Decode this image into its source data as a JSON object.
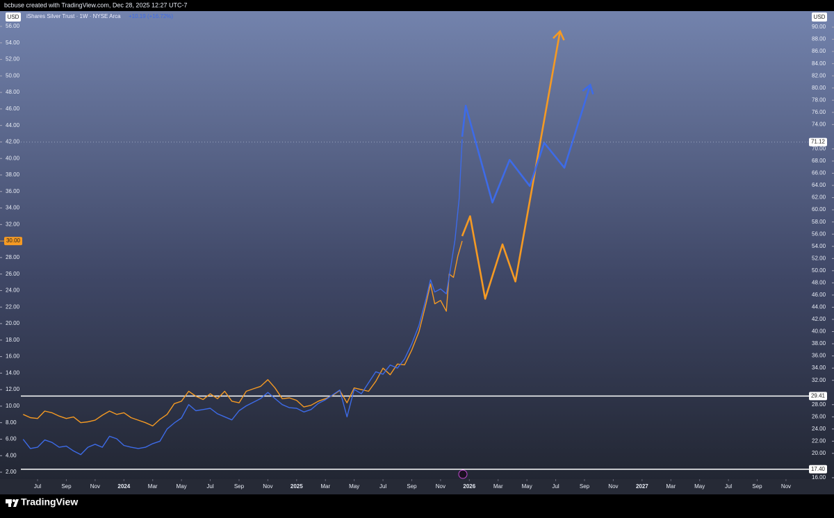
{
  "header": "bcbuse created with TradingView.com, Dec 28, 2025 12:27 UTC-7",
  "footer": "TradingView",
  "chart_data": {
    "type": "line",
    "title": "iShares Silver Trust · 1W · NYSE Arca",
    "subtitle": "+10.19 (+16.72%)",
    "y_unit": "USD",
    "y2_unit": "USD",
    "xlim": [
      -1.16,
      53.5
    ],
    "xticks": [
      {
        "value": 0,
        "label": "Jul"
      },
      {
        "value": 2,
        "label": "Sep"
      },
      {
        "value": 4,
        "label": "Nov"
      },
      {
        "value": 6,
        "label": "2024"
      },
      {
        "value": 8,
        "label": "Mar"
      },
      {
        "value": 10,
        "label": "May"
      },
      {
        "value": 12,
        "label": "Jul"
      },
      {
        "value": 14,
        "label": "Sep"
      },
      {
        "value": 16,
        "label": "Nov"
      },
      {
        "value": 18,
        "label": "2025"
      },
      {
        "value": 20,
        "label": "Mar"
      },
      {
        "value": 22,
        "label": "May"
      },
      {
        "value": 24,
        "label": "Jul"
      },
      {
        "value": 26,
        "label": "Sep"
      },
      {
        "value": 28,
        "label": "Nov"
      },
      {
        "value": 30,
        "label": "2026"
      },
      {
        "value": 32,
        "label": "Mar"
      },
      {
        "value": 34,
        "label": "May"
      },
      {
        "value": 36,
        "label": "Jul"
      },
      {
        "value": 38,
        "label": "Sep"
      },
      {
        "value": 40,
        "label": "Nov"
      },
      {
        "value": 42,
        "label": "2027"
      },
      {
        "value": 44,
        "label": "Mar"
      },
      {
        "value": 46,
        "label": "May"
      },
      {
        "value": 48,
        "label": "Jul"
      },
      {
        "value": 50,
        "label": "Sep"
      },
      {
        "value": 52,
        "label": "Nov"
      }
    ],
    "ylim": [
      1.16,
      56.67
    ],
    "yticks": [
      {
        "value": 2,
        "label": "2.00"
      },
      {
        "value": 4,
        "label": "4.00"
      },
      {
        "value": 6,
        "label": "6.00"
      },
      {
        "value": 8,
        "label": "8.00"
      },
      {
        "value": 10,
        "label": "10.00"
      },
      {
        "value": 12,
        "label": "12.00"
      },
      {
        "value": 14,
        "label": "14.00"
      },
      {
        "value": 16,
        "label": "16.00"
      },
      {
        "value": 18,
        "label": "18.00"
      },
      {
        "value": 20,
        "label": "20.00"
      },
      {
        "value": 22,
        "label": "22.00"
      },
      {
        "value": 24,
        "label": "24.00"
      },
      {
        "value": 26,
        "label": "26.00"
      },
      {
        "value": 28,
        "label": "28.00"
      },
      {
        "value": 32,
        "label": "32.00"
      },
      {
        "value": 34,
        "label": "34.00"
      },
      {
        "value": 36,
        "label": "36.00"
      },
      {
        "value": 38,
        "label": "38.00"
      },
      {
        "value": 40,
        "label": "40.00"
      },
      {
        "value": 42,
        "label": "42.00"
      },
      {
        "value": 44,
        "label": "44.00"
      },
      {
        "value": 46,
        "label": "46.00"
      },
      {
        "value": 48,
        "label": "48.00"
      },
      {
        "value": 50,
        "label": "50.00"
      },
      {
        "value": 52,
        "label": "52.00"
      },
      {
        "value": 54,
        "label": "54.00"
      },
      {
        "value": 56,
        "label": "56.00"
      }
    ],
    "y2lim": [
      15.77,
      91.03
    ],
    "y2ticks": [
      {
        "value": 16,
        "label": "16.00"
      },
      {
        "value": 20,
        "label": "20.00"
      },
      {
        "value": 22,
        "label": "22.00"
      },
      {
        "value": 24,
        "label": "24.00"
      },
      {
        "value": 26,
        "label": "26.00"
      },
      {
        "value": 28,
        "label": "28.00"
      },
      {
        "value": 32,
        "label": "32.00"
      },
      {
        "value": 34,
        "label": "34.00"
      },
      {
        "value": 36,
        "label": "36.00"
      },
      {
        "value": 38,
        "label": "38.00"
      },
      {
        "value": 40,
        "label": "40.00"
      },
      {
        "value": 42,
        "label": "42.00"
      },
      {
        "value": 44,
        "label": "44.00"
      },
      {
        "value": 46,
        "label": "46.00"
      },
      {
        "value": 48,
        "label": "48.00"
      },
      {
        "value": 50,
        "label": "50.00"
      },
      {
        "value": 52,
        "label": "52.00"
      },
      {
        "value": 54,
        "label": "54.00"
      },
      {
        "value": 56,
        "label": "56.00"
      },
      {
        "value": 58,
        "label": "58.00"
      },
      {
        "value": 60,
        "label": "60.00"
      },
      {
        "value": 62,
        "label": "62.00"
      },
      {
        "value": 64,
        "label": "64.00"
      },
      {
        "value": 66,
        "label": "66.00"
      },
      {
        "value": 68,
        "label": "68.00"
      },
      {
        "value": 70,
        "label": "70.00"
      },
      {
        "value": 74,
        "label": "74.00"
      },
      {
        "value": 76,
        "label": "76.00"
      },
      {
        "value": 78,
        "label": "78.00"
      },
      {
        "value": 80,
        "label": "80.00"
      },
      {
        "value": 82,
        "label": "82.00"
      },
      {
        "value": 84,
        "label": "84.00"
      },
      {
        "value": 86,
        "label": "86.00"
      },
      {
        "value": 88,
        "label": "88.00"
      },
      {
        "value": 90,
        "label": "90.00"
      }
    ],
    "series": [
      {
        "color": "#f59a23",
        "axis": "y",
        "arrow": false,
        "x": [
          -1,
          -0.5,
          0,
          0.5,
          1,
          1.5,
          2,
          2.5,
          3,
          3.5,
          4,
          4.5,
          5,
          5.5,
          6,
          6.5,
          7,
          7.5,
          8,
          8.5,
          9,
          9.5,
          10,
          10.5,
          11,
          11.5,
          12,
          12.5,
          13,
          13.5,
          14,
          14.5,
          15,
          15.5,
          16,
          16.5,
          17,
          17.5,
          18,
          18.5,
          19,
          19.5,
          20,
          20.5,
          21,
          21.5,
          22,
          22.5,
          23,
          23.5,
          24,
          24.5,
          25,
          25.5,
          26,
          26.5,
          27,
          27.3,
          27.6,
          28,
          28.4,
          28.6,
          28.9,
          29.2,
          29.5
        ],
        "values": [
          9.0,
          8.6,
          8.5,
          9.4,
          9.2,
          8.8,
          8.5,
          8.7,
          8.0,
          8.1,
          8.3,
          8.9,
          9.4,
          9.0,
          9.2,
          8.6,
          8.3,
          8.0,
          7.6,
          8.4,
          9.0,
          10.3,
          10.6,
          11.8,
          11.2,
          10.8,
          11.5,
          10.9,
          11.8,
          10.6,
          10.4,
          11.8,
          12.1,
          12.4,
          13.2,
          12.2,
          10.9,
          11.0,
          10.7,
          9.9,
          10.1,
          10.6,
          10.9,
          11.3,
          11.9,
          10.4,
          12.2,
          12.0,
          11.8,
          13.0,
          14.6,
          13.8,
          15.1,
          15.0,
          16.8,
          19.0,
          22.5,
          24.8,
          22.4,
          22.8,
          21.5,
          26.0,
          25.6,
          28.2,
          30.0
        ]
      },
      {
        "color": "#f59a23",
        "axis": "y",
        "arrow": true,
        "x": [
          29.5,
          30.05,
          31.1,
          32.3,
          33.2,
          36.3
        ],
        "values": [
          30.6,
          33.0,
          23.0,
          29.6,
          25.1,
          55.4
        ]
      },
      {
        "color": "#3d6be8",
        "axis": "y2",
        "arrow": false,
        "x": [
          -1,
          -0.5,
          0,
          0.5,
          1,
          1.5,
          2,
          2.5,
          3,
          3.5,
          4,
          4.5,
          5,
          5.5,
          6,
          6.5,
          7,
          7.5,
          8,
          8.5,
          9,
          9.5,
          10,
          10.5,
          11,
          11.5,
          12,
          12.5,
          13,
          13.5,
          14,
          14.5,
          15,
          15.5,
          16,
          16.5,
          17,
          17.5,
          18,
          18.5,
          19,
          19.5,
          20,
          20.5,
          21,
          21.5,
          22,
          22.5,
          23,
          23.5,
          24,
          24.5,
          25,
          25.5,
          26,
          26.5,
          27,
          27.3,
          27.6,
          28,
          28.4,
          28.7,
          29,
          29.3,
          29.5
        ],
        "values": [
          22.3,
          20.8,
          21.0,
          22.2,
          21.8,
          21.0,
          21.2,
          20.4,
          19.8,
          21.0,
          21.5,
          21.0,
          22.8,
          22.4,
          21.3,
          21.0,
          20.8,
          21.0,
          21.6,
          22.0,
          24.0,
          25.0,
          25.8,
          28.0,
          27.0,
          27.2,
          27.4,
          26.5,
          26.0,
          25.5,
          27.0,
          27.8,
          28.4,
          29.0,
          30.0,
          29.0,
          28.0,
          27.5,
          27.4,
          26.8,
          27.2,
          28.2,
          28.8,
          29.6,
          30.4,
          26.0,
          30.5,
          29.8,
          31.6,
          33.4,
          33.0,
          34.5,
          34.0,
          35.5,
          38.0,
          41.0,
          45.5,
          48.5,
          46.5,
          47.0,
          46.2,
          50.5,
          55.0,
          62.0,
          71.6
        ]
      },
      {
        "color": "#3d6be8",
        "axis": "y2",
        "arrow": true,
        "x": [
          29.5,
          29.75,
          31.6,
          32.8,
          34.2,
          35.2,
          36.6,
          38.4
        ],
        "values": [
          72.0,
          77.1,
          61.2,
          68.2,
          63.9,
          71.0,
          66.9,
          80.5
        ]
      }
    ],
    "hlines": [
      {
        "value": 29.41,
        "label": "29.41",
        "axis": "y2"
      },
      {
        "value": 17.4,
        "label": "17.40",
        "axis": "y2"
      }
    ],
    "price_labels": [
      {
        "value": 30.0,
        "label": "30.00",
        "axis": "y",
        "color": "#f59a23"
      },
      {
        "value": 71.12,
        "label": "71.12",
        "axis": "y2",
        "color": "#ffffff"
      }
    ]
  }
}
